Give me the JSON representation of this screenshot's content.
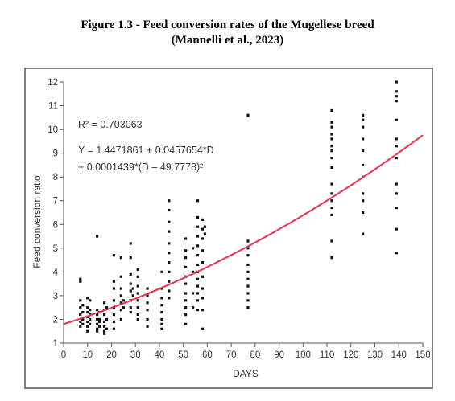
{
  "figure": {
    "title_line1": "Figure 1.3 - Feed conversion rates of the Mugellese breed",
    "title_line2": "(Mannelli et al., 2023)"
  },
  "chart_data": {
    "type": "scatter",
    "xlabel": "DAYS",
    "ylabel": "Feed conversion ratio",
    "xlim": [
      0,
      150
    ],
    "ylim": [
      1,
      12
    ],
    "x_ticks": [
      "0",
      "10",
      "20",
      "30",
      "40",
      "50",
      "60",
      "70",
      "80",
      "90",
      "100",
      "110",
      "120",
      "130",
      "140",
      "150"
    ],
    "y_ticks": [
      "1",
      "2",
      "3",
      "4",
      "5",
      "6",
      "7",
      "8",
      "9",
      "10",
      "11",
      "12"
    ],
    "grid": false,
    "legend": "none",
    "annotations": {
      "r2": "R² = 0.703063",
      "eq_line1": "Y = 1.4471861 + 0.0457654*D",
      "eq_line2": "+ 0.0001439*(D – 49.7778)²"
    },
    "fit": {
      "intercept": 1.4471861,
      "slope": 0.0457654,
      "quad": 0.0001439,
      "center": 49.7778,
      "color": "#e0405a"
    },
    "points": [
      [
        7,
        3.7
      ],
      [
        7,
        3.6
      ],
      [
        7,
        2.8
      ],
      [
        7,
        2.5
      ],
      [
        7,
        2.2
      ],
      [
        7,
        1.9
      ],
      [
        7,
        1.7
      ],
      [
        8,
        2.6
      ],
      [
        8,
        2.3
      ],
      [
        8,
        2.0
      ],
      [
        8,
        1.8
      ],
      [
        10,
        2.9
      ],
      [
        10,
        2.5
      ],
      [
        10,
        2.3
      ],
      [
        10,
        2.1
      ],
      [
        10,
        1.9
      ],
      [
        10,
        1.7
      ],
      [
        10,
        1.5
      ],
      [
        11,
        2.8
      ],
      [
        11,
        2.4
      ],
      [
        11,
        2.2
      ],
      [
        11,
        2.0
      ],
      [
        11,
        1.8
      ],
      [
        14,
        5.5
      ],
      [
        14,
        2.4
      ],
      [
        14,
        2.2
      ],
      [
        14,
        2.0
      ],
      [
        14,
        1.8
      ],
      [
        14,
        1.6
      ],
      [
        14,
        1.5
      ],
      [
        15,
        2.3
      ],
      [
        15,
        2.0
      ],
      [
        15,
        1.9
      ],
      [
        15,
        1.7
      ],
      [
        17,
        2.7
      ],
      [
        17,
        2.4
      ],
      [
        17,
        2.2
      ],
      [
        17,
        1.9
      ],
      [
        17,
        1.7
      ],
      [
        17,
        1.5
      ],
      [
        17,
        1.4
      ],
      [
        18,
        2.5
      ],
      [
        18,
        2.0
      ],
      [
        18,
        1.6
      ],
      [
        21,
        4.7
      ],
      [
        21,
        3.6
      ],
      [
        21,
        3.3
      ],
      [
        21,
        2.8
      ],
      [
        21,
        2.5
      ],
      [
        21,
        2.2
      ],
      [
        21,
        1.9
      ],
      [
        21,
        1.6
      ],
      [
        24,
        4.6
      ],
      [
        24,
        3.8
      ],
      [
        24,
        3.3
      ],
      [
        24,
        3.0
      ],
      [
        24,
        2.7
      ],
      [
        24,
        2.4
      ],
      [
        24,
        2.0
      ],
      [
        25,
        2.8
      ],
      [
        25,
        2.5
      ],
      [
        28,
        5.2
      ],
      [
        28,
        4.6
      ],
      [
        28,
        3.9
      ],
      [
        28,
        3.5
      ],
      [
        28,
        3.2
      ],
      [
        28,
        2.8
      ],
      [
        28,
        2.5
      ],
      [
        28,
        2.3
      ],
      [
        29,
        3.3
      ],
      [
        29,
        3.0
      ],
      [
        31,
        4.1
      ],
      [
        31,
        3.8
      ],
      [
        31,
        3.4
      ],
      [
        31,
        3.1
      ],
      [
        31,
        2.8
      ],
      [
        31,
        2.5
      ],
      [
        31,
        2.2
      ],
      [
        31,
        2.0
      ],
      [
        35,
        3.3
      ],
      [
        35,
        3.0
      ],
      [
        35,
        2.7
      ],
      [
        35,
        2.4
      ],
      [
        35,
        2.0
      ],
      [
        35,
        1.7
      ],
      [
        41,
        4.0
      ],
      [
        41,
        3.3
      ],
      [
        41,
        2.9
      ],
      [
        41,
        2.6
      ],
      [
        41,
        2.3
      ],
      [
        41,
        2.0
      ],
      [
        41,
        1.8
      ],
      [
        41,
        1.6
      ],
      [
        44,
        7.0
      ],
      [
        44,
        6.6
      ],
      [
        44,
        6.1
      ],
      [
        44,
        5.7
      ],
      [
        44,
        5.2
      ],
      [
        44,
        4.8
      ],
      [
        44,
        4.4
      ],
      [
        44,
        4.0
      ],
      [
        44,
        3.6
      ],
      [
        44,
        3.2
      ],
      [
        44,
        2.9
      ],
      [
        51,
        5.4
      ],
      [
        51,
        4.9
      ],
      [
        51,
        4.6
      ],
      [
        51,
        4.2
      ],
      [
        51,
        3.8
      ],
      [
        51,
        3.5
      ],
      [
        51,
        3.1
      ],
      [
        51,
        2.8
      ],
      [
        51,
        2.5
      ],
      [
        51,
        2.2
      ],
      [
        51,
        1.8
      ],
      [
        54,
        5.0
      ],
      [
        54,
        4.0
      ],
      [
        54,
        3.1
      ],
      [
        54,
        2.5
      ],
      [
        56,
        7.0
      ],
      [
        56,
        6.3
      ],
      [
        56,
        5.9
      ],
      [
        56,
        5.5
      ],
      [
        56,
        5.1
      ],
      [
        56,
        4.7
      ],
      [
        56,
        4.3
      ],
      [
        56,
        4.0
      ],
      [
        56,
        3.7
      ],
      [
        56,
        3.4
      ],
      [
        56,
        3.1
      ],
      [
        56,
        2.8
      ],
      [
        56,
        2.4
      ],
      [
        58,
        6.2
      ],
      [
        58,
        5.8
      ],
      [
        58,
        5.4
      ],
      [
        58,
        4.9
      ],
      [
        58,
        4.4
      ],
      [
        58,
        3.8
      ],
      [
        58,
        3.3
      ],
      [
        58,
        2.9
      ],
      [
        58,
        2.4
      ],
      [
        58,
        1.6
      ],
      [
        59,
        5.9
      ],
      [
        59,
        5.6
      ],
      [
        77,
        10.6
      ],
      [
        77,
        5.3
      ],
      [
        77,
        5.0
      ],
      [
        77,
        4.7
      ],
      [
        77,
        4.3
      ],
      [
        77,
        4.0
      ],
      [
        77,
        3.7
      ],
      [
        77,
        3.4
      ],
      [
        77,
        3.1
      ],
      [
        77,
        2.8
      ],
      [
        77,
        2.5
      ],
      [
        112,
        10.8
      ],
      [
        112,
        10.3
      ],
      [
        112,
        10.1
      ],
      [
        112,
        9.8
      ],
      [
        112,
        9.6
      ],
      [
        112,
        9.3
      ],
      [
        112,
        9.1
      ],
      [
        112,
        8.8
      ],
      [
        112,
        8.4
      ],
      [
        112,
        7.7
      ],
      [
        112,
        7.3
      ],
      [
        112,
        7.0
      ],
      [
        112,
        6.7
      ],
      [
        112,
        6.4
      ],
      [
        112,
        5.3
      ],
      [
        112,
        4.6
      ],
      [
        125,
        10.6
      ],
      [
        125,
        10.4
      ],
      [
        125,
        10.1
      ],
      [
        125,
        9.6
      ],
      [
        125,
        9.1
      ],
      [
        125,
        8.5
      ],
      [
        125,
        8.0
      ],
      [
        125,
        7.3
      ],
      [
        125,
        7.0
      ],
      [
        125,
        6.5
      ],
      [
        125,
        5.6
      ],
      [
        139,
        12.0
      ],
      [
        139,
        11.6
      ],
      [
        139,
        11.4
      ],
      [
        139,
        11.2
      ],
      [
        139,
        10.4
      ],
      [
        139,
        9.6
      ],
      [
        139,
        9.3
      ],
      [
        139,
        8.8
      ],
      [
        139,
        7.7
      ],
      [
        139,
        7.3
      ],
      [
        139,
        6.7
      ],
      [
        139,
        5.8
      ],
      [
        139,
        4.8
      ]
    ]
  }
}
